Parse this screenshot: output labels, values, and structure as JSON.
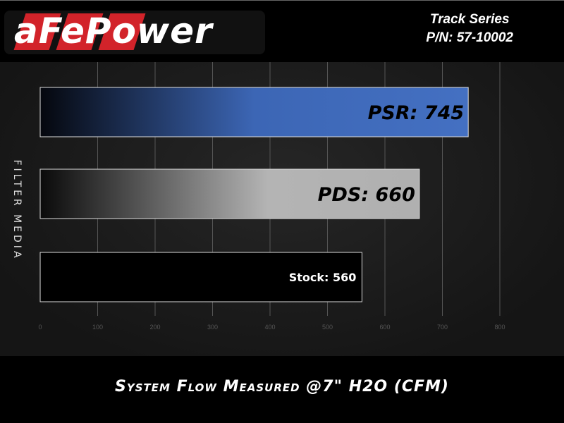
{
  "header": {
    "logo_text": "aFePower",
    "line1": "Track Series",
    "line2": "P/N: 57-10002"
  },
  "chart_data": {
    "type": "bar",
    "orientation": "horizontal",
    "categories": [
      "PSR",
      "PDS",
      "Stock"
    ],
    "values": [
      745,
      660,
      560
    ],
    "data_labels": [
      "PSR: 745",
      "PDS: 660",
      "Stock: 560"
    ],
    "ylabel": "FILTER MEDIA",
    "xlabel": "System Flow Measured @7\" H2O (CFM)",
    "xlim": [
      0,
      800
    ],
    "xticks": [
      "0",
      "100",
      "200",
      "300",
      "400",
      "500",
      "600",
      "700",
      "800"
    ],
    "grid": "vertical",
    "colors": {
      "PSR": "#3f6bbd",
      "PDS": "#b4b4b4",
      "Stock": "#000000"
    }
  }
}
